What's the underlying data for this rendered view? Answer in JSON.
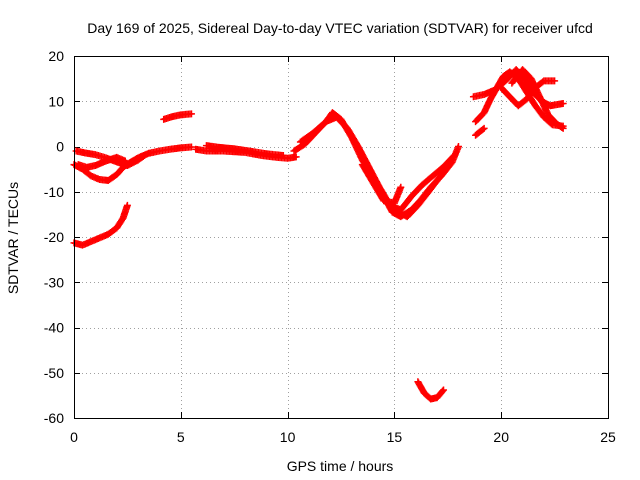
{
  "chart_data": {
    "type": "scatter",
    "title": "Day 169 of 2025, Sidereal Day-to-day VTEC variation (SDTVAR) for receiver ufcd",
    "xlabel": "GPS time / hours",
    "ylabel": "SDTVAR / TECUs",
    "xlim": [
      0,
      25
    ],
    "ylim": [
      -60,
      20
    ],
    "xticks": [
      0,
      5,
      10,
      15,
      20,
      25
    ],
    "yticks": [
      -60,
      -50,
      -40,
      -30,
      -20,
      -10,
      0,
      10,
      20
    ],
    "grid": true,
    "marker": "+",
    "series": [
      {
        "name": "SDTVAR",
        "color": "#ff0000",
        "tracks": [
          [
            [
              0,
              -4
            ],
            [
              0.4,
              -5
            ],
            [
              0.8,
              -6.5
            ],
            [
              1.2,
              -7.3
            ],
            [
              1.6,
              -7.5
            ],
            [
              2.0,
              -6.2
            ],
            [
              2.3,
              -4.6
            ],
            [
              2.6,
              -3.6
            ],
            [
              3.0,
              -2.5
            ],
            [
              3.5,
              -1.5
            ],
            [
              4.0,
              -1.0
            ],
            [
              4.5,
              -0.6
            ],
            [
              5.0,
              -0.3
            ],
            [
              5.5,
              -0.1
            ]
          ],
          [
            [
              0.1,
              -1.0
            ],
            [
              0.5,
              -1.4
            ],
            [
              1.0,
              -1.8
            ],
            [
              1.5,
              -2.5
            ],
            [
              2.0,
              -3.4
            ],
            [
              2.5,
              -4.2
            ],
            [
              3.0,
              -3.0
            ],
            [
              3.3,
              -2.0
            ]
          ],
          [
            [
              0.2,
              -4.0
            ],
            [
              0.6,
              -4.6
            ],
            [
              1.0,
              -4.2
            ],
            [
              1.5,
              -3.2
            ],
            [
              2.0,
              -2.4
            ],
            [
              2.4,
              -3.2
            ]
          ],
          [
            [
              0.0,
              -21.3
            ],
            [
              0.4,
              -21.8
            ],
            [
              0.8,
              -21.0
            ],
            [
              1.2,
              -20.2
            ],
            [
              1.6,
              -19.4
            ],
            [
              2.0,
              -18.0
            ],
            [
              2.3,
              -15.8
            ],
            [
              2.5,
              -13.0
            ]
          ],
          [
            [
              4.2,
              6.0
            ],
            [
              4.6,
              6.6
            ],
            [
              5.0,
              7.0
            ],
            [
              5.5,
              7.2
            ]
          ],
          [
            [
              5.7,
              -0.6
            ],
            [
              6.2,
              -1.0
            ],
            [
              7.0,
              -1.0
            ],
            [
              8.0,
              -1.3
            ],
            [
              8.8,
              -2.0
            ],
            [
              9.5,
              -2.4
            ],
            [
              10.0,
              -2.6
            ],
            [
              10.4,
              -2.3
            ]
          ],
          [
            [
              6.2,
              0.2
            ],
            [
              6.8,
              -0.2
            ],
            [
              7.5,
              -0.5
            ],
            [
              8.2,
              -1.0
            ],
            [
              9.0,
              -1.6
            ],
            [
              9.8,
              -2.0
            ]
          ],
          [
            [
              10.3,
              -1.0
            ],
            [
              10.8,
              0.5
            ],
            [
              11.3,
              3.0
            ],
            [
              11.8,
              5.5
            ],
            [
              12.1,
              7.5
            ],
            [
              12.5,
              6.0
            ],
            [
              13.0,
              2.0
            ],
            [
              13.5,
              -3.0
            ],
            [
              14.0,
              -7.0
            ],
            [
              14.5,
              -11.0
            ],
            [
              14.9,
              -14.5
            ],
            [
              15.3,
              -15.5
            ],
            [
              15.8,
              -14.0
            ],
            [
              16.2,
              -12.0
            ],
            [
              16.7,
              -9.0
            ],
            [
              17.2,
              -6.5
            ],
            [
              17.7,
              -3.5
            ],
            [
              18.0,
              0.0
            ]
          ],
          [
            [
              10.6,
              1.0
            ],
            [
              11.2,
              3.0
            ],
            [
              11.8,
              5.5
            ],
            [
              12.3,
              6.5
            ],
            [
              12.8,
              4.0
            ],
            [
              13.3,
              0.0
            ],
            [
              13.8,
              -4.5
            ],
            [
              14.3,
              -9.0
            ],
            [
              14.8,
              -13.0
            ],
            [
              15.3,
              -14.0
            ],
            [
              15.8,
              -11.0
            ],
            [
              16.3,
              -8.5
            ],
            [
              16.8,
              -6.5
            ],
            [
              17.3,
              -4.5
            ],
            [
              17.8,
              -2.0
            ]
          ],
          [
            [
              13.5,
              -4.0
            ],
            [
              14.0,
              -8.0
            ],
            [
              14.5,
              -12.0
            ],
            [
              15.0,
              -12.5
            ],
            [
              15.3,
              -9.0
            ]
          ],
          [
            [
              15.0,
              -14.0
            ],
            [
              15.6,
              -15.5
            ],
            [
              16.1,
              -13.0
            ],
            [
              16.6,
              -10.0
            ],
            [
              17.0,
              -7.5
            ],
            [
              17.4,
              -5.0
            ]
          ],
          [
            [
              16.1,
              -52.0
            ],
            [
              16.4,
              -54.5
            ],
            [
              16.7,
              -55.8
            ],
            [
              17.0,
              -55.5
            ],
            [
              17.3,
              -53.8
            ]
          ],
          [
            [
              18.8,
              2.5
            ],
            [
              19.2,
              4.0
            ]
          ],
          [
            [
              18.8,
              5.5
            ],
            [
              19.2,
              7.5
            ],
            [
              19.5,
              10.5
            ],
            [
              19.8,
              13.0
            ],
            [
              20.1,
              15.5
            ],
            [
              20.4,
              16.5
            ],
            [
              20.8,
              15.0
            ],
            [
              21.2,
              12.0
            ],
            [
              21.6,
              9.0
            ],
            [
              22.0,
              6.5
            ],
            [
              22.4,
              4.8
            ],
            [
              22.9,
              4.5
            ]
          ],
          [
            [
              18.7,
              11.0
            ],
            [
              19.2,
              11.5
            ],
            [
              19.7,
              12.5
            ],
            [
              20.2,
              14.5
            ],
            [
              20.7,
              17.0
            ],
            [
              21.1,
              15.0
            ],
            [
              21.5,
              12.0
            ],
            [
              21.9,
              10.0
            ],
            [
              22.3,
              9.0
            ],
            [
              22.9,
              9.5
            ]
          ],
          [
            [
              20.0,
              13.0
            ],
            [
              20.4,
              11.0
            ],
            [
              20.8,
              9.0
            ],
            [
              21.2,
              10.5
            ],
            [
              21.6,
              13.0
            ],
            [
              22.0,
              14.5
            ],
            [
              22.5,
              14.5
            ]
          ],
          [
            [
              20.5,
              14.0
            ],
            [
              21.0,
              17.0
            ],
            [
              21.4,
              15.0
            ],
            [
              21.8,
              11.0
            ],
            [
              22.2,
              7.0
            ],
            [
              22.6,
              5.0
            ],
            [
              22.9,
              4.0
            ]
          ]
        ]
      }
    ]
  }
}
